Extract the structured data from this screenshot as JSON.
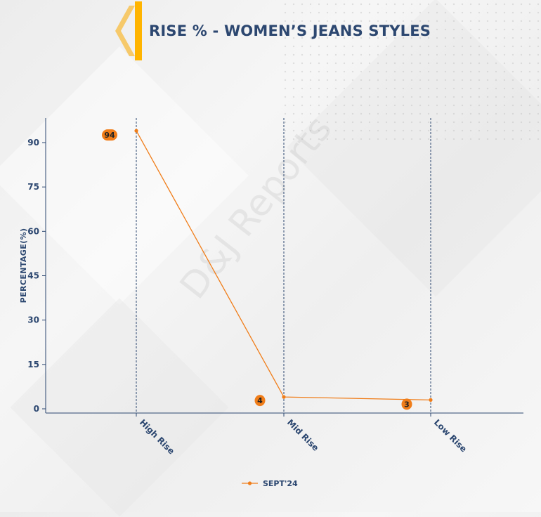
{
  "header": {
    "title": "RISE % - WOMEN’S JEANS STYLES"
  },
  "watermark": "D&J Reports",
  "colors": {
    "series": "#f07d19",
    "axis": "#2c4770",
    "accent": "#ffb400"
  },
  "chart_data": {
    "type": "line",
    "title": "RISE % - WOMEN’S JEANS STYLES",
    "xlabel": "",
    "ylabel": "PERCENTAGE(%)",
    "categories": [
      "High Rise",
      "Mid Rise",
      "Low Rise"
    ],
    "series": [
      {
        "name": "SEPT'24",
        "values": [
          94,
          4,
          3
        ]
      }
    ],
    "ylim": [
      -1.5,
      99
    ],
    "yticks": [
      0,
      15,
      30,
      45,
      60,
      75,
      90
    ],
    "grid": "vertical",
    "legend": "bottom-center",
    "data_labels": true
  }
}
